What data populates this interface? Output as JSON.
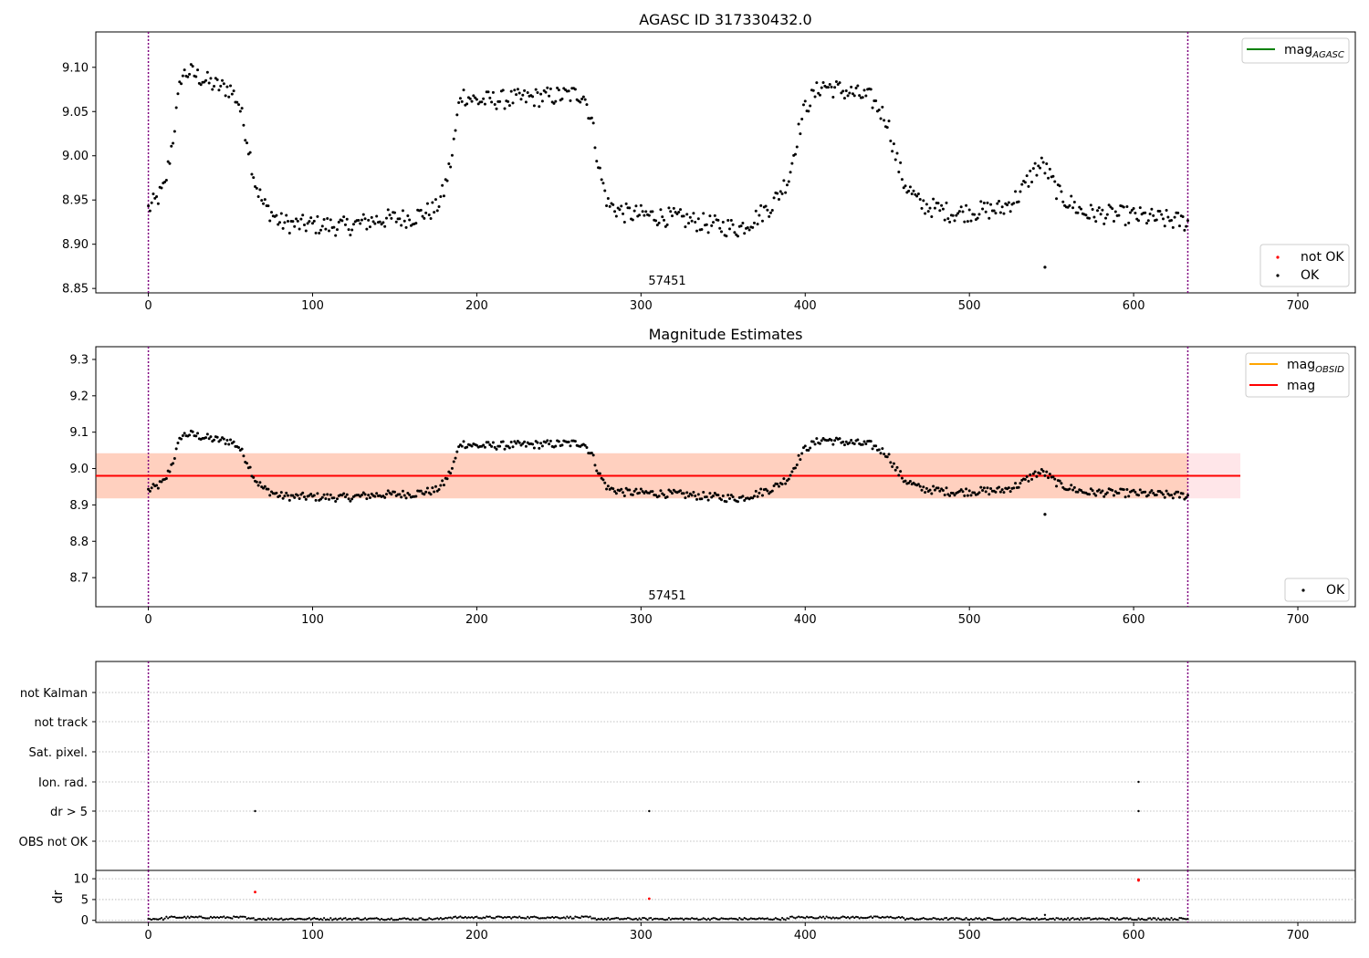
{
  "chart_data": [
    {
      "type": "scatter",
      "title": "AGASC ID 317330432.0",
      "xlim": [
        -32,
        735
      ],
      "ylim": [
        8.845,
        9.14
      ],
      "xticks": [
        0,
        100,
        200,
        300,
        400,
        500,
        600,
        700
      ],
      "yticks": [
        "8.85",
        "8.90",
        "8.95",
        "9.00",
        "9.05",
        "9.10"
      ],
      "yticks_values": [
        8.85,
        8.9,
        8.95,
        9.0,
        9.05,
        9.1
      ],
      "vlines": [
        0,
        633
      ],
      "vline_color": "#800080",
      "annotation": {
        "x": 316,
        "y": 8.853,
        "text": "57451"
      },
      "outlier": {
        "x": 546,
        "y": 8.874
      },
      "lines_legend": [
        {
          "name": "mag",
          "subscript": "AGASC",
          "color": "#008000"
        }
      ],
      "points_legend": [
        {
          "name": "not OK",
          "color": "#ff0000"
        },
        {
          "name": "OK",
          "color": "#000000"
        }
      ],
      "series_profile": {
        "x": [
          0,
          5,
          10,
          15,
          20,
          25,
          30,
          40,
          50,
          55,
          60,
          65,
          70,
          80,
          90,
          100,
          120,
          140,
          160,
          175,
          180,
          185,
          190,
          200,
          230,
          265,
          270,
          275,
          280,
          290,
          320,
          350,
          360,
          370,
          380,
          390,
          395,
          400,
          410,
          440,
          450,
          455,
          460,
          470,
          490,
          520,
          530,
          540,
          545,
          555,
          570,
          600,
          633
        ],
        "y": [
          8.94,
          8.95,
          8.965,
          9.02,
          9.09,
          9.095,
          9.09,
          9.08,
          9.075,
          9.06,
          9.02,
          8.97,
          8.945,
          8.925,
          8.922,
          8.922,
          8.92,
          8.928,
          8.93,
          8.94,
          8.96,
          9.0,
          9.07,
          9.062,
          9.065,
          9.07,
          9.04,
          8.98,
          8.945,
          8.935,
          8.93,
          8.92,
          8.918,
          8.93,
          8.945,
          8.975,
          9.02,
          9.055,
          9.08,
          9.065,
          9.04,
          9.0,
          8.97,
          8.945,
          8.935,
          8.94,
          8.955,
          8.985,
          8.99,
          8.955,
          8.935,
          8.932,
          8.925
        ]
      }
    },
    {
      "type": "scatter",
      "title": "Magnitude Estimates",
      "xlim": [
        -32,
        735
      ],
      "ylim": [
        8.62,
        9.335
      ],
      "xticks": [
        0,
        100,
        200,
        300,
        400,
        500,
        600,
        700
      ],
      "yticks": [
        "8.7",
        "8.8",
        "8.9",
        "9.0",
        "9.1",
        "9.2",
        "9.3"
      ],
      "yticks_values": [
        8.7,
        8.8,
        8.9,
        9.0,
        9.1,
        9.2,
        9.3
      ],
      "vlines": [
        0,
        633
      ],
      "annotation": {
        "x": 316,
        "y": 8.64,
        "text": "57451"
      },
      "mag_line": {
        "y": 8.98,
        "x0": -32,
        "x1": 665,
        "color": "#ff0000"
      },
      "band_pink": {
        "y0": 8.918,
        "y1": 9.042,
        "x0": -32,
        "x1": 665,
        "color": "#ffb6c1"
      },
      "band_orange": {
        "y0": 8.918,
        "y1": 9.042,
        "x0": -32,
        "x1": 633,
        "color": "#ffa060"
      },
      "lines_legend": [
        {
          "name": "mag",
          "subscript": "OBSID",
          "color": "#ffa500"
        },
        {
          "name": "mag",
          "subscript": "",
          "color": "#ff0000"
        }
      ],
      "points_legend": [
        {
          "name": "OK",
          "color": "#000000"
        }
      ]
    },
    {
      "type": "scatter",
      "flag_labels": [
        "not Kalman",
        "not track",
        "Sat. pixel.",
        "Ion. rad.",
        "dr > 5",
        "OBS not OK"
      ],
      "flag_points": [
        {
          "x": 65,
          "flag": "dr > 5"
        },
        {
          "x": 305,
          "flag": "dr > 5"
        },
        {
          "x": 603,
          "flag": "dr > 5"
        },
        {
          "x": 603,
          "flag": "Ion. rad."
        }
      ],
      "vlines": [
        0,
        633
      ]
    },
    {
      "type": "scatter",
      "ylabel": "dr",
      "xlim": [
        -32,
        735
      ],
      "ylim": [
        -0.5,
        12
      ],
      "yticks": [
        "0",
        "5",
        "10"
      ],
      "yticks_values": [
        0,
        5,
        10
      ],
      "xticks": [
        0,
        100,
        200,
        300,
        400,
        500,
        600,
        700
      ],
      "red_points": [
        {
          "x": 65,
          "y": 6.8
        },
        {
          "x": 305,
          "y": 5.2
        },
        {
          "x": 603,
          "y": 9.6
        },
        {
          "x": 603,
          "y": 9.8
        }
      ],
      "vlines": [
        0,
        633
      ]
    }
  ]
}
